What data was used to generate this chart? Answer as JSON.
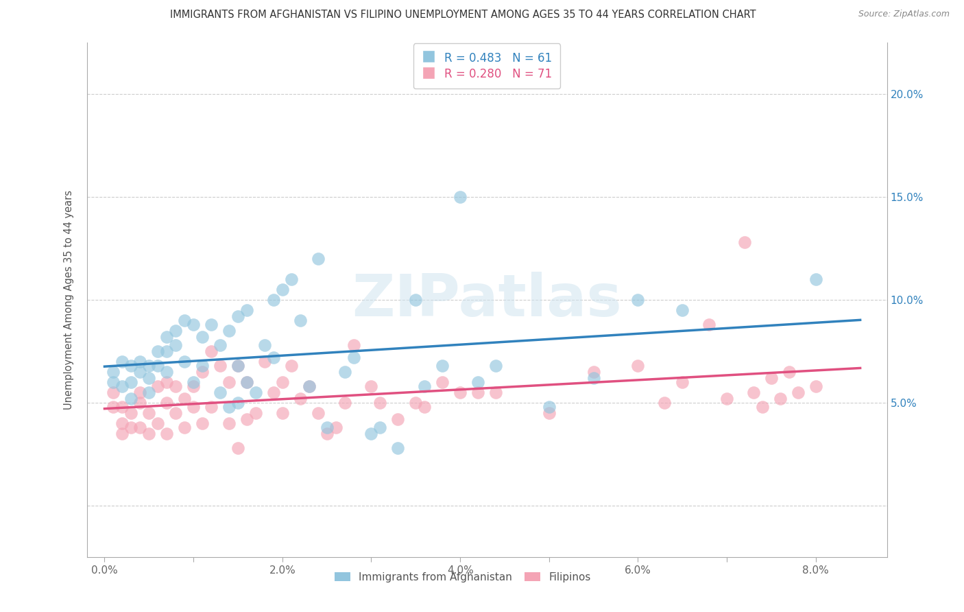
{
  "title": "IMMIGRANTS FROM AFGHANISTAN VS FILIPINO UNEMPLOYMENT AMONG AGES 35 TO 44 YEARS CORRELATION CHART",
  "source": "Source: ZipAtlas.com",
  "ylabel": "Unemployment Among Ages 35 to 44 years",
  "xlabel_ticks": [
    "0.0%",
    "",
    "2.0%",
    "",
    "4.0%",
    "",
    "6.0%",
    "",
    "8.0%"
  ],
  "xlabel_vals": [
    0.0,
    0.01,
    0.02,
    0.03,
    0.04,
    0.05,
    0.06,
    0.07,
    0.08
  ],
  "ylabel_ticks_right": [
    "5.0%",
    "10.0%",
    "15.0%",
    "20.0%"
  ],
  "ylabel_vals": [
    0.0,
    0.05,
    0.1,
    0.15,
    0.2
  ],
  "ylabel_vals_right": [
    0.05,
    0.1,
    0.15,
    0.2
  ],
  "xlim": [
    -0.002,
    0.088
  ],
  "ylim": [
    -0.025,
    0.225
  ],
  "color_blue": "#92c5de",
  "color_pink": "#f4a4b5",
  "color_blue_line": "#3182bd",
  "color_pink_line": "#e05080",
  "watermark": "ZIPatlas",
  "blue_x": [
    0.001,
    0.001,
    0.002,
    0.002,
    0.003,
    0.003,
    0.003,
    0.004,
    0.004,
    0.005,
    0.005,
    0.005,
    0.006,
    0.006,
    0.007,
    0.007,
    0.007,
    0.008,
    0.008,
    0.009,
    0.009,
    0.01,
    0.01,
    0.011,
    0.011,
    0.012,
    0.013,
    0.013,
    0.014,
    0.014,
    0.015,
    0.015,
    0.015,
    0.016,
    0.016,
    0.017,
    0.018,
    0.019,
    0.019,
    0.02,
    0.021,
    0.022,
    0.023,
    0.024,
    0.025,
    0.027,
    0.028,
    0.03,
    0.031,
    0.033,
    0.035,
    0.036,
    0.038,
    0.04,
    0.042,
    0.044,
    0.05,
    0.055,
    0.06,
    0.065,
    0.08
  ],
  "blue_y": [
    0.065,
    0.06,
    0.07,
    0.058,
    0.068,
    0.06,
    0.052,
    0.07,
    0.065,
    0.068,
    0.062,
    0.055,
    0.075,
    0.068,
    0.082,
    0.075,
    0.065,
    0.085,
    0.078,
    0.09,
    0.07,
    0.088,
    0.06,
    0.082,
    0.068,
    0.088,
    0.055,
    0.078,
    0.085,
    0.048,
    0.092,
    0.068,
    0.05,
    0.095,
    0.06,
    0.055,
    0.078,
    0.1,
    0.072,
    0.105,
    0.11,
    0.09,
    0.058,
    0.12,
    0.038,
    0.065,
    0.072,
    0.035,
    0.038,
    0.028,
    0.1,
    0.058,
    0.068,
    0.15,
    0.06,
    0.068,
    0.048,
    0.062,
    0.1,
    0.095,
    0.11
  ],
  "pink_x": [
    0.001,
    0.001,
    0.002,
    0.002,
    0.002,
    0.003,
    0.003,
    0.004,
    0.004,
    0.004,
    0.005,
    0.005,
    0.006,
    0.006,
    0.007,
    0.007,
    0.007,
    0.008,
    0.008,
    0.009,
    0.009,
    0.01,
    0.01,
    0.011,
    0.011,
    0.012,
    0.012,
    0.013,
    0.014,
    0.014,
    0.015,
    0.015,
    0.016,
    0.016,
    0.017,
    0.018,
    0.019,
    0.02,
    0.02,
    0.021,
    0.022,
    0.023,
    0.024,
    0.025,
    0.026,
    0.027,
    0.028,
    0.03,
    0.031,
    0.033,
    0.035,
    0.036,
    0.038,
    0.04,
    0.042,
    0.044,
    0.05,
    0.055,
    0.06,
    0.063,
    0.065,
    0.068,
    0.07,
    0.072,
    0.073,
    0.074,
    0.075,
    0.076,
    0.077,
    0.078,
    0.08
  ],
  "pink_y": [
    0.055,
    0.048,
    0.048,
    0.04,
    0.035,
    0.038,
    0.045,
    0.05,
    0.038,
    0.055,
    0.035,
    0.045,
    0.058,
    0.04,
    0.05,
    0.06,
    0.035,
    0.058,
    0.045,
    0.052,
    0.038,
    0.058,
    0.048,
    0.065,
    0.04,
    0.075,
    0.048,
    0.068,
    0.06,
    0.04,
    0.068,
    0.028,
    0.06,
    0.042,
    0.045,
    0.07,
    0.055,
    0.06,
    0.045,
    0.068,
    0.052,
    0.058,
    0.045,
    0.035,
    0.038,
    0.05,
    0.078,
    0.058,
    0.05,
    0.042,
    0.05,
    0.048,
    0.06,
    0.055,
    0.055,
    0.055,
    0.045,
    0.065,
    0.068,
    0.05,
    0.06,
    0.088,
    0.052,
    0.128,
    0.055,
    0.048,
    0.062,
    0.052,
    0.065,
    0.055,
    0.058
  ]
}
